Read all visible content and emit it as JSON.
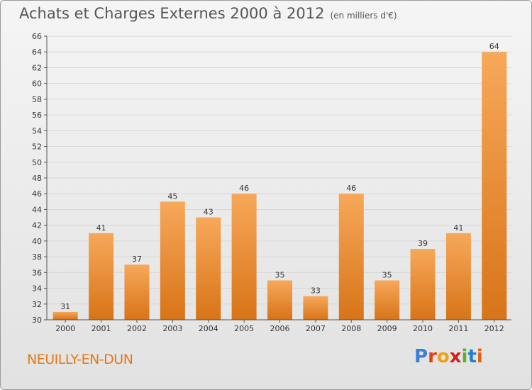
{
  "header": {
    "title": "Achats et Charges Externes 2000 à 2012",
    "subtitle": "(en milliers d'€)"
  },
  "footer": {
    "commune": "NEUILLY-EN-DUN",
    "brand_letters": [
      "P",
      "r",
      "o",
      "x",
      "i",
      "t",
      "i"
    ]
  },
  "colors": {
    "bar_top": "#f7a85a",
    "bar_bottom": "#d87418",
    "commune": "#e07b1a",
    "brand": [
      "#3a7fd5",
      "#e0401a",
      "#f0a010",
      "#d02020",
      "#60b030",
      "#2080d0",
      "#e06010"
    ]
  },
  "chart_data": {
    "type": "bar",
    "categories": [
      "2000",
      "2001",
      "2002",
      "2003",
      "2004",
      "2005",
      "2006",
      "2007",
      "2008",
      "2009",
      "2010",
      "2011",
      "2012"
    ],
    "values": [
      31,
      41,
      37,
      45,
      43,
      46,
      35,
      33,
      46,
      35,
      39,
      41,
      64
    ],
    "value_labels": [
      "31",
      "41",
      "37",
      "45",
      "43",
      "46",
      "35",
      "33",
      "46",
      "35",
      "39",
      "41",
      "64"
    ],
    "ylim": [
      30,
      66
    ],
    "yticks": [
      "30",
      "32",
      "34",
      "36",
      "38",
      "40",
      "42",
      "44",
      "46",
      "48",
      "50",
      "52",
      "54",
      "56",
      "58",
      "60",
      "62",
      "64",
      "66"
    ],
    "grid": true,
    "title": "Achats et Charges Externes 2000 à 2012",
    "subtitle": "(en milliers d'€)",
    "xlabel": "",
    "ylabel": ""
  }
}
